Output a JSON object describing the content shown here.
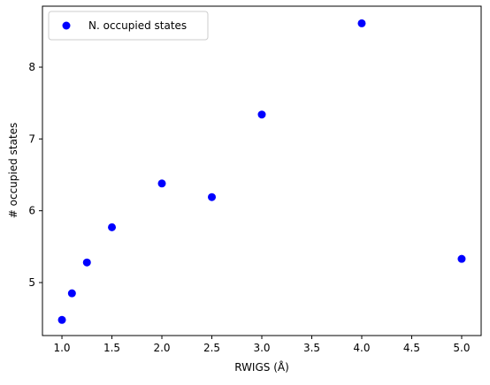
{
  "chart_data": {
    "type": "scatter",
    "xlabel": "RWIGS (Å)",
    "ylabel": "# occupied states",
    "series": [
      {
        "name": "N. occupied states",
        "color": "#0000ff",
        "x": [
          1.0,
          1.1,
          1.25,
          1.5,
          2.0,
          2.5,
          3.0,
          4.0,
          5.0
        ],
        "values": [
          4.48,
          4.85,
          5.28,
          5.77,
          6.38,
          6.19,
          7.34,
          8.61,
          5.33
        ]
      }
    ],
    "xlim": [
      0.805,
      5.195
    ],
    "xticks": [
      {
        "value": 1,
        "label": "1.0"
      },
      1.5,
      {
        "value": 2,
        "label": "2.0"
      },
      2.5,
      {
        "value": 3,
        "label": "3.0"
      },
      3.5,
      {
        "value": 4,
        "label": "4.0"
      },
      4.5,
      {
        "value": 5,
        "label": "5.0"
      }
    ],
    "ylim": [
      4.262,
      8.849
    ],
    "yticks": [
      5,
      6,
      7,
      8
    ],
    "grid": false,
    "legend": "upper-left"
  }
}
